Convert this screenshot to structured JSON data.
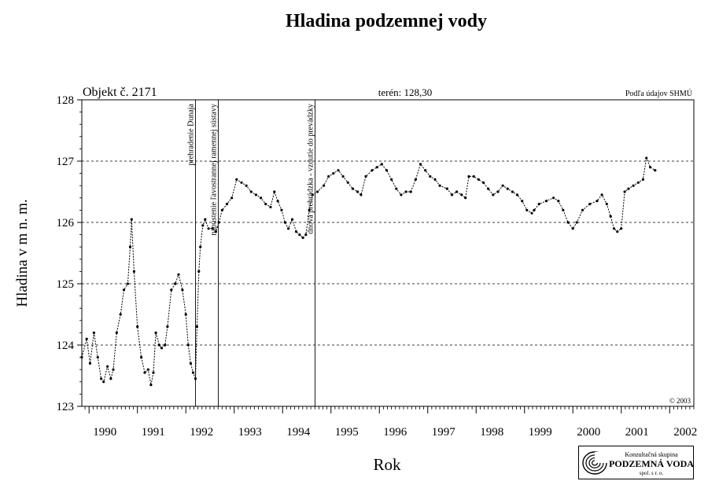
{
  "page": {
    "title": "Hladina podzemnej vody"
  },
  "header": {
    "object": "Objekt č. 2171",
    "terrain": "terén: 128,30",
    "source": "Podľa údajov SHMÚ"
  },
  "copyright": "© 2003",
  "logo": {
    "line1": "Konzultačná skupina",
    "line2": "PODZEMNÁ VODA",
    "line3": "spol. s r. o.",
    "icon": "spiral-logo-icon"
  },
  "chart_data": {
    "type": "line",
    "title": "Hladina podzemnej vody",
    "xlabel": "Rok",
    "ylabel": "Hladina v m n. m.",
    "xlim": [
      1989.85,
      2002.5
    ],
    "ylim": [
      123,
      128
    ],
    "yticks": [
      123,
      124,
      125,
      126,
      127,
      128
    ],
    "xtick_labels": [
      "1990",
      "1991",
      "1992",
      "1993",
      "1994",
      "1995",
      "1996",
      "1997",
      "1998",
      "1999",
      "2000",
      "2001",
      "2002"
    ],
    "grid": "dashed horizontal",
    "events": [
      {
        "x": 1992.2,
        "label": "prehradenie Dunaja"
      },
      {
        "x": 1992.67,
        "label": "napustenie ľavostrannej ramennej sústavy"
      },
      {
        "x": 1994.67,
        "label": "dnová prehrádzka - vzdutie do prevádzky"
      }
    ],
    "series": [
      {
        "style": "dashed line with point markers",
        "points": [
          [
            1989.85,
            123.8
          ],
          [
            1989.95,
            124.1
          ],
          [
            1990.02,
            123.7
          ],
          [
            1990.1,
            124.2
          ],
          [
            1990.18,
            123.8
          ],
          [
            1990.25,
            123.45
          ],
          [
            1990.3,
            123.4
          ],
          [
            1990.38,
            123.65
          ],
          [
            1990.45,
            123.45
          ],
          [
            1990.5,
            123.6
          ],
          [
            1990.57,
            124.2
          ],
          [
            1990.65,
            124.5
          ],
          [
            1990.72,
            124.9
          ],
          [
            1990.8,
            125.0
          ],
          [
            1990.85,
            125.6
          ],
          [
            1990.88,
            126.05
          ],
          [
            1990.93,
            125.2
          ],
          [
            1991.0,
            124.3
          ],
          [
            1991.08,
            123.8
          ],
          [
            1991.15,
            123.55
          ],
          [
            1991.22,
            123.6
          ],
          [
            1991.28,
            123.35
          ],
          [
            1991.33,
            123.55
          ],
          [
            1991.38,
            124.2
          ],
          [
            1991.45,
            124.0
          ],
          [
            1991.5,
            123.95
          ],
          [
            1991.57,
            124.0
          ],
          [
            1991.62,
            124.3
          ],
          [
            1991.7,
            124.9
          ],
          [
            1991.78,
            125.0
          ],
          [
            1991.85,
            125.15
          ],
          [
            1991.93,
            124.9
          ],
          [
            1992.0,
            124.5
          ],
          [
            1992.05,
            124.0
          ],
          [
            1992.1,
            123.7
          ],
          [
            1992.15,
            123.55
          ],
          [
            1992.2,
            123.45
          ],
          [
            1992.23,
            124.3
          ],
          [
            1992.27,
            125.2
          ],
          [
            1992.3,
            125.6
          ],
          [
            1992.35,
            125.95
          ],
          [
            1992.4,
            126.05
          ],
          [
            1992.47,
            125.9
          ],
          [
            1992.55,
            125.9
          ],
          [
            1992.62,
            125.85
          ],
          [
            1992.68,
            126.0
          ],
          [
            1992.75,
            126.2
          ],
          [
            1992.85,
            126.3
          ],
          [
            1992.95,
            126.4
          ],
          [
            1993.05,
            126.7
          ],
          [
            1993.15,
            126.65
          ],
          [
            1993.25,
            126.6
          ],
          [
            1993.35,
            126.5
          ],
          [
            1993.45,
            126.45
          ],
          [
            1993.55,
            126.4
          ],
          [
            1993.65,
            126.3
          ],
          [
            1993.75,
            126.25
          ],
          [
            1993.83,
            126.5
          ],
          [
            1993.9,
            126.35
          ],
          [
            1993.98,
            126.2
          ],
          [
            1994.05,
            126.0
          ],
          [
            1994.12,
            125.9
          ],
          [
            1994.2,
            126.05
          ],
          [
            1994.28,
            125.85
          ],
          [
            1994.35,
            125.8
          ],
          [
            1994.42,
            125.75
          ],
          [
            1994.48,
            125.8
          ],
          [
            1994.55,
            126.2
          ],
          [
            1994.62,
            126.45
          ],
          [
            1994.72,
            126.5
          ],
          [
            1994.85,
            126.6
          ],
          [
            1994.95,
            126.75
          ],
          [
            1995.05,
            126.8
          ],
          [
            1995.15,
            126.85
          ],
          [
            1995.25,
            126.75
          ],
          [
            1995.35,
            126.65
          ],
          [
            1995.45,
            126.55
          ],
          [
            1995.55,
            126.5
          ],
          [
            1995.62,
            126.45
          ],
          [
            1995.72,
            126.75
          ],
          [
            1995.85,
            126.85
          ],
          [
            1995.95,
            126.9
          ],
          [
            1996.05,
            126.95
          ],
          [
            1996.15,
            126.85
          ],
          [
            1996.25,
            126.7
          ],
          [
            1996.35,
            126.55
          ],
          [
            1996.45,
            126.45
          ],
          [
            1996.55,
            126.5
          ],
          [
            1996.65,
            126.5
          ],
          [
            1996.75,
            126.7
          ],
          [
            1996.85,
            126.95
          ],
          [
            1996.95,
            126.85
          ],
          [
            1997.05,
            126.75
          ],
          [
            1997.15,
            126.7
          ],
          [
            1997.25,
            126.6
          ],
          [
            1997.4,
            126.55
          ],
          [
            1997.5,
            126.45
          ],
          [
            1997.6,
            126.5
          ],
          [
            1997.7,
            126.45
          ],
          [
            1997.78,
            126.4
          ],
          [
            1997.85,
            126.75
          ],
          [
            1997.95,
            126.75
          ],
          [
            1998.05,
            126.7
          ],
          [
            1998.15,
            126.65
          ],
          [
            1998.25,
            126.55
          ],
          [
            1998.35,
            126.45
          ],
          [
            1998.45,
            126.5
          ],
          [
            1998.55,
            126.6
          ],
          [
            1998.65,
            126.55
          ],
          [
            1998.75,
            126.5
          ],
          [
            1998.85,
            126.45
          ],
          [
            1998.95,
            126.35
          ],
          [
            1999.05,
            126.2
          ],
          [
            1999.15,
            126.15
          ],
          [
            1999.2,
            126.2
          ],
          [
            1999.3,
            126.3
          ],
          [
            1999.45,
            126.35
          ],
          [
            1999.6,
            126.4
          ],
          [
            1999.7,
            126.35
          ],
          [
            1999.8,
            126.2
          ],
          [
            1999.9,
            126.0
          ],
          [
            2000.0,
            125.9
          ],
          [
            2000.08,
            126.0
          ],
          [
            2000.2,
            126.2
          ],
          [
            2000.35,
            126.3
          ],
          [
            2000.5,
            126.35
          ],
          [
            2000.6,
            126.45
          ],
          [
            2000.7,
            126.3
          ],
          [
            2000.78,
            126.1
          ],
          [
            2000.85,
            125.9
          ],
          [
            2000.92,
            125.85
          ],
          [
            2001.0,
            125.9
          ],
          [
            2001.07,
            126.5
          ],
          [
            2001.15,
            126.55
          ],
          [
            2001.25,
            126.6
          ],
          [
            2001.35,
            126.65
          ],
          [
            2001.45,
            126.7
          ],
          [
            2001.52,
            127.05
          ],
          [
            2001.6,
            126.9
          ],
          [
            2001.7,
            126.85
          ]
        ]
      }
    ]
  }
}
